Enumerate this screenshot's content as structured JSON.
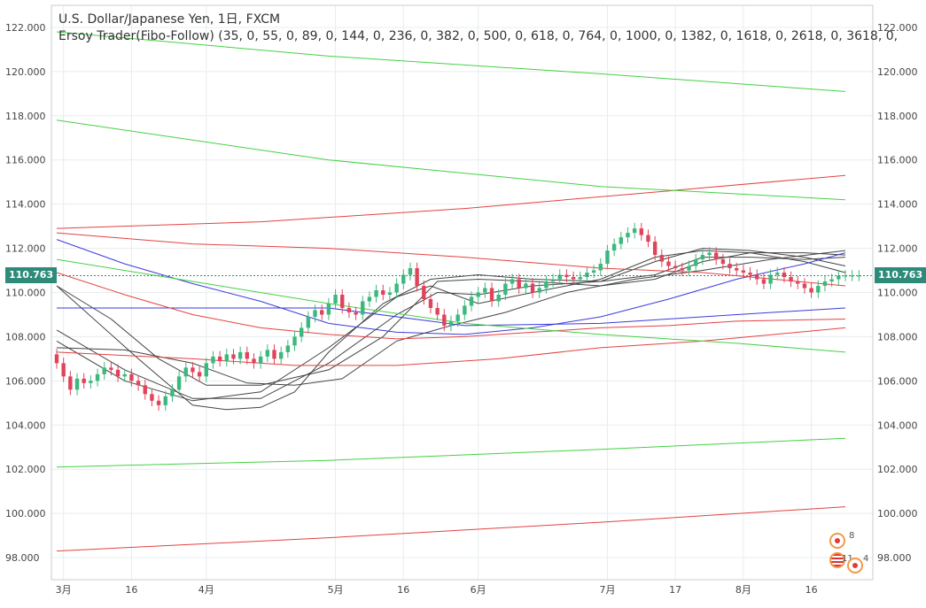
{
  "header": {
    "title": "U.S. Dollar/Japanese Yen, 1日, FXCM",
    "indicator": "Ersoy Trader(Fibo-Follow) (35, 0, 55, 0, 89, 0, 144, 0, 236, 0, 382, 0, 500, 0, 618, 0, 764, 0, 1000, 0, 1382, 0, 1618, 0, 2618, 0, 3618, 0,"
  },
  "price_tag": {
    "value": "110.763",
    "color": "#2e8b79"
  },
  "events": {
    "first_count": "8",
    "second_count": "11",
    "third_count": "4"
  },
  "colors": {
    "up": "#3cb87d",
    "down": "#e0445a",
    "grid": "#e8ecef",
    "ma_dark": "#444444",
    "ma_blue": "#3b3bdc",
    "ma_red": "#e34242",
    "ma_green": "#43d143"
  },
  "chart_data": {
    "type": "candlestick",
    "title": "U.S. Dollar/Japanese Yen, 1日, FXCM",
    "ylim": [
      97.0,
      123.0
    ],
    "y_ticks": [
      "122.000",
      "120.000",
      "118.000",
      "116.000",
      "114.000",
      "112.000",
      "110.000",
      "108.000",
      "106.000",
      "104.000",
      "102.000",
      "100.000",
      "98.000"
    ],
    "x_ticks": [
      {
        "label": "3月",
        "i": 1
      },
      {
        "label": "16",
        "i": 11
      },
      {
        "label": "4月",
        "i": 22
      },
      {
        "label": "5月",
        "i": 41
      },
      {
        "label": "16",
        "i": 51
      },
      {
        "label": "6月",
        "i": 62
      },
      {
        "label": "7月",
        "i": 81
      },
      {
        "label": "17",
        "i": 91
      },
      {
        "label": "8月",
        "i": 101
      },
      {
        "label": "16",
        "i": 111
      }
    ],
    "n_bars": 119,
    "last_price": 110.763,
    "closes": [
      106.8,
      106.2,
      105.6,
      106.1,
      105.9,
      106.0,
      106.3,
      106.6,
      106.5,
      106.2,
      106.3,
      106.0,
      105.8,
      105.4,
      105.1,
      104.9,
      105.3,
      105.6,
      106.2,
      106.6,
      106.4,
      106.2,
      106.8,
      107.1,
      106.9,
      107.2,
      107.0,
      107.3,
      107.0,
      106.8,
      107.1,
      107.4,
      107.0,
      107.3,
      107.6,
      108.0,
      108.4,
      108.9,
      109.2,
      109.0,
      109.5,
      109.9,
      109.3,
      109.1,
      109.0,
      109.6,
      109.8,
      110.1,
      109.9,
      110.0,
      110.4,
      110.8,
      111.1,
      110.3,
      109.7,
      109.3,
      109.0,
      108.5,
      108.7,
      109.0,
      109.4,
      109.8,
      110.0,
      110.2,
      109.6,
      109.9,
      110.4,
      110.6,
      110.2,
      110.4,
      110.0,
      110.2,
      110.5,
      110.6,
      110.8,
      110.7,
      110.6,
      110.7,
      110.9,
      111.0,
      111.3,
      111.9,
      112.2,
      112.5,
      112.7,
      112.9,
      112.6,
      112.3,
      111.7,
      111.4,
      111.2,
      111.1,
      111.0,
      111.2,
      111.5,
      111.7,
      111.8,
      111.5,
      111.3,
      111.1,
      111.0,
      110.9,
      110.8,
      110.6,
      110.4,
      110.8,
      110.9,
      110.7,
      110.5,
      110.4,
      110.2,
      110.0,
      110.3,
      110.5,
      110.6,
      110.763,
      110.763,
      110.763,
      110.763
    ],
    "series": [
      {
        "kind": "ma",
        "color_key": "ma_dark",
        "points": [
          [
            0,
            107.8
          ],
          [
            10,
            106.0
          ],
          [
            20,
            105.1
          ],
          [
            30,
            105.5
          ],
          [
            40,
            107.5
          ],
          [
            50,
            109.8
          ],
          [
            55,
            110.3
          ],
          [
            62,
            109.5
          ],
          [
            70,
            110.0
          ],
          [
            80,
            110.6
          ],
          [
            88,
            111.6
          ],
          [
            95,
            111.9
          ],
          [
            102,
            111.8
          ],
          [
            110,
            111.4
          ],
          [
            116,
            110.9
          ]
        ]
      },
      {
        "kind": "ma",
        "color_key": "ma_dark",
        "points": [
          [
            0,
            108.3
          ],
          [
            10,
            106.5
          ],
          [
            20,
            105.2
          ],
          [
            30,
            105.2
          ],
          [
            40,
            106.8
          ],
          [
            50,
            109.0
          ],
          [
            56,
            110.0
          ],
          [
            62,
            109.9
          ],
          [
            70,
            110.3
          ],
          [
            80,
            110.5
          ],
          [
            88,
            111.4
          ],
          [
            95,
            112.0
          ],
          [
            102,
            111.9
          ],
          [
            110,
            111.6
          ],
          [
            116,
            111.2
          ]
        ]
      },
      {
        "kind": "ma",
        "color_key": "ma_dark",
        "points": [
          [
            0,
            110.3
          ],
          [
            8,
            108.8
          ],
          [
            15,
            107.0
          ],
          [
            22,
            105.8
          ],
          [
            30,
            105.8
          ],
          [
            40,
            106.5
          ],
          [
            48,
            108.0
          ],
          [
            56,
            110.5
          ],
          [
            62,
            110.6
          ],
          [
            70,
            110.5
          ],
          [
            80,
            110.3
          ],
          [
            88,
            110.6
          ],
          [
            95,
            111.4
          ],
          [
            102,
            111.8
          ],
          [
            110,
            111.8
          ],
          [
            116,
            111.7
          ]
        ]
      },
      {
        "kind": "ma",
        "color_key": "ma_dark",
        "points": [
          [
            0,
            110.3
          ],
          [
            12,
            107.0
          ],
          [
            20,
            104.9
          ],
          [
            25,
            104.7
          ],
          [
            30,
            104.8
          ],
          [
            35,
            105.5
          ],
          [
            40,
            107.3
          ],
          [
            48,
            109.5
          ],
          [
            55,
            110.6
          ],
          [
            62,
            110.8
          ],
          [
            70,
            110.6
          ],
          [
            80,
            110.5
          ],
          [
            88,
            110.8
          ],
          [
            95,
            111.6
          ],
          [
            102,
            111.6
          ],
          [
            110,
            111.5
          ],
          [
            116,
            111.6
          ]
        ]
      },
      {
        "kind": "ma",
        "color_key": "ma_dark",
        "points": [
          [
            0,
            107.5
          ],
          [
            10,
            107.4
          ],
          [
            20,
            106.8
          ],
          [
            28,
            105.9
          ],
          [
            35,
            105.8
          ],
          [
            42,
            106.1
          ],
          [
            50,
            107.8
          ],
          [
            58,
            108.5
          ],
          [
            66,
            109.1
          ],
          [
            75,
            110.0
          ],
          [
            85,
            110.6
          ],
          [
            95,
            111.0
          ],
          [
            105,
            111.5
          ],
          [
            116,
            111.9
          ]
        ]
      },
      {
        "kind": "ma",
        "color_key": "ma_blue",
        "points": [
          [
            0,
            112.4
          ],
          [
            10,
            111.3
          ],
          [
            20,
            110.4
          ],
          [
            30,
            109.6
          ],
          [
            40,
            108.6
          ],
          [
            50,
            108.2
          ],
          [
            60,
            108.1
          ],
          [
            70,
            108.4
          ],
          [
            80,
            108.9
          ],
          [
            90,
            109.7
          ],
          [
            100,
            110.6
          ],
          [
            110,
            111.3
          ],
          [
            116,
            111.8
          ]
        ]
      },
      {
        "kind": "ma",
        "color_key": "ma_blue",
        "points": [
          [
            0,
            109.3
          ],
          [
            20,
            109.3
          ],
          [
            40,
            109.3
          ],
          [
            60,
            108.5
          ],
          [
            80,
            108.6
          ],
          [
            100,
            109.0
          ],
          [
            116,
            109.3
          ]
        ]
      },
      {
        "kind": "ma",
        "color_key": "ma_red",
        "points": [
          [
            0,
            110.9
          ],
          [
            10,
            109.9
          ],
          [
            20,
            109.0
          ],
          [
            30,
            108.4
          ],
          [
            40,
            108.1
          ],
          [
            50,
            107.9
          ],
          [
            60,
            108.0
          ],
          [
            70,
            108.2
          ],
          [
            80,
            108.4
          ],
          [
            90,
            108.5
          ],
          [
            100,
            108.7
          ],
          [
            116,
            108.8
          ]
        ]
      },
      {
        "kind": "ma",
        "color_key": "ma_red",
        "points": [
          [
            0,
            107.3
          ],
          [
            20,
            107.0
          ],
          [
            35,
            106.7
          ],
          [
            50,
            106.7
          ],
          [
            65,
            107.0
          ],
          [
            80,
            107.5
          ],
          [
            95,
            107.8
          ],
          [
            116,
            108.4
          ]
        ]
      },
      {
        "kind": "ma",
        "color_key": "ma_red",
        "points": [
          [
            0,
            112.7
          ],
          [
            20,
            112.2
          ],
          [
            40,
            112.0
          ],
          [
            60,
            111.6
          ],
          [
            80,
            111.1
          ],
          [
            95,
            110.9
          ],
          [
            116,
            110.3
          ]
        ]
      },
      {
        "kind": "ma",
        "color_key": "ma_red",
        "points": [
          [
            0,
            112.9
          ],
          [
            30,
            113.2
          ],
          [
            60,
            113.8
          ],
          [
            90,
            114.6
          ],
          [
            116,
            115.3
          ]
        ]
      },
      {
        "kind": "ma",
        "color_key": "ma_red",
        "points": [
          [
            0,
            98.3
          ],
          [
            40,
            98.9
          ],
          [
            80,
            99.6
          ],
          [
            116,
            100.3
          ]
        ]
      },
      {
        "kind": "ma",
        "color_key": "ma_green",
        "points": [
          [
            0,
            121.8
          ],
          [
            40,
            120.7
          ],
          [
            80,
            119.9
          ],
          [
            116,
            119.1
          ]
        ]
      },
      {
        "kind": "ma",
        "color_key": "ma_green",
        "points": [
          [
            0,
            117.8
          ],
          [
            40,
            116.0
          ],
          [
            80,
            114.8
          ],
          [
            116,
            114.2
          ]
        ]
      },
      {
        "kind": "ma",
        "color_key": "ma_green",
        "points": [
          [
            0,
            111.5
          ],
          [
            20,
            110.5
          ],
          [
            40,
            109.5
          ],
          [
            60,
            108.6
          ],
          [
            80,
            108.1
          ],
          [
            100,
            107.7
          ],
          [
            116,
            107.3
          ]
        ]
      },
      {
        "kind": "ma",
        "color_key": "ma_green",
        "points": [
          [
            0,
            102.1
          ],
          [
            40,
            102.4
          ],
          [
            80,
            102.9
          ],
          [
            116,
            103.4
          ]
        ]
      }
    ]
  }
}
